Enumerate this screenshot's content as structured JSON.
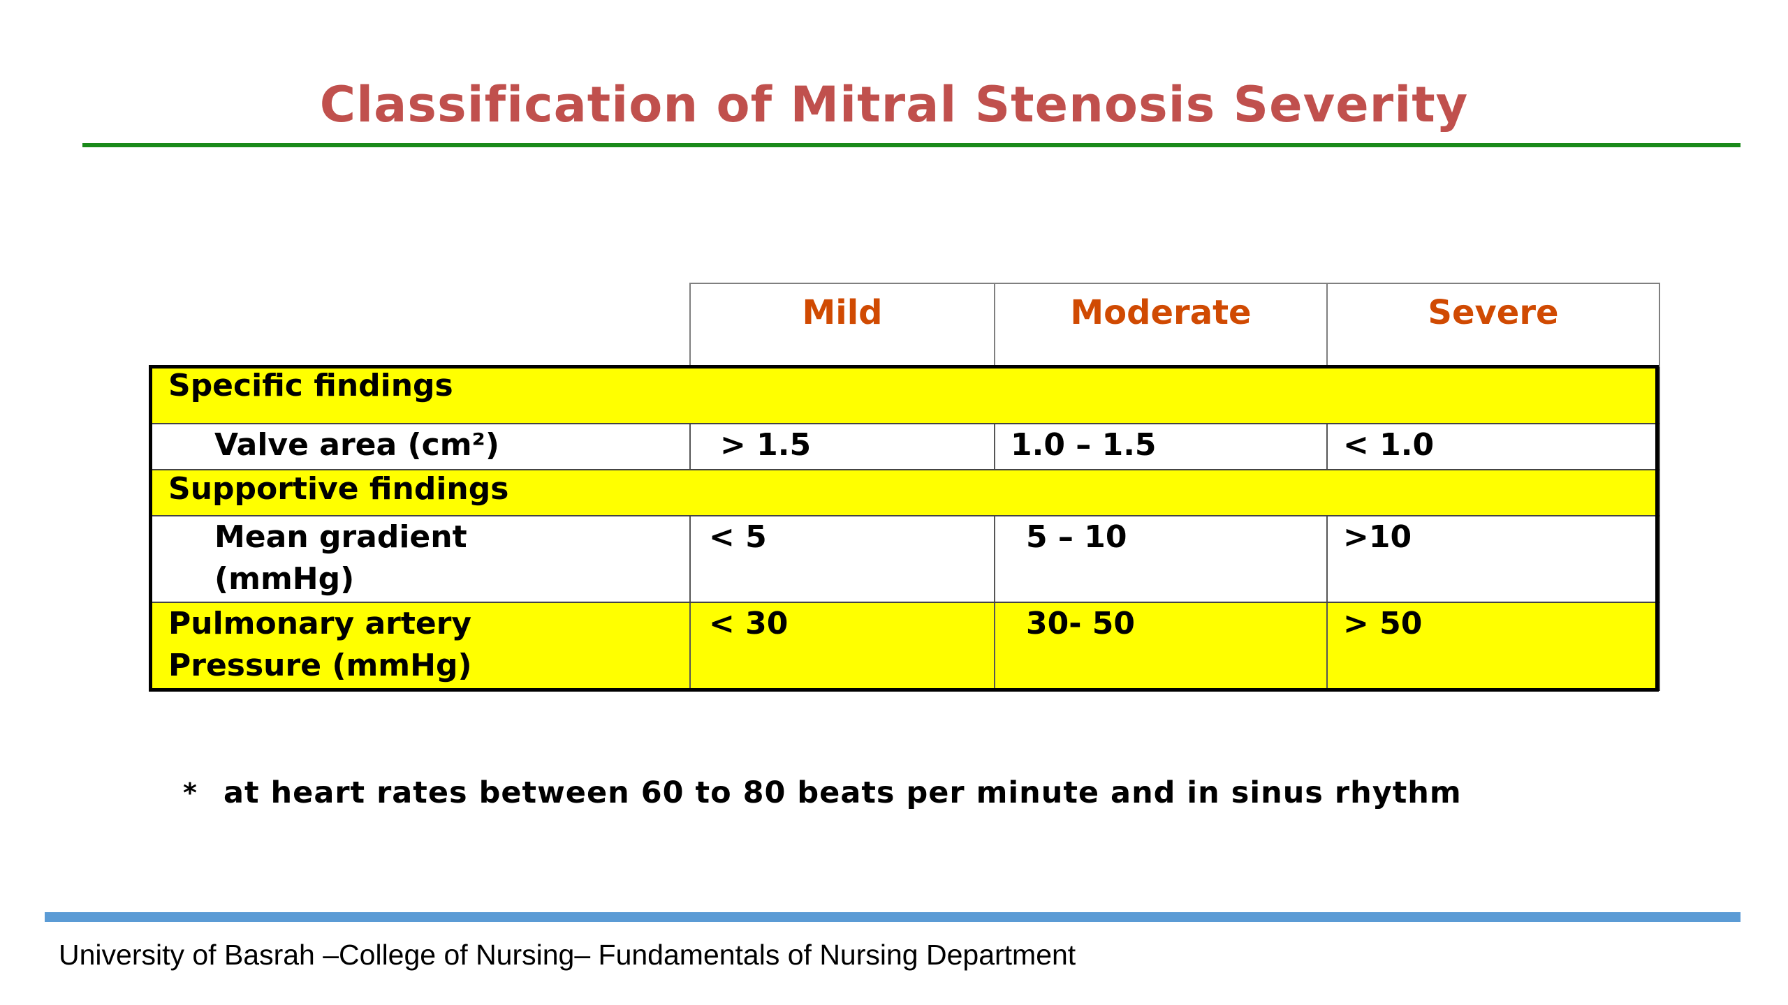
{
  "slide": {
    "title": "Classification of Mitral Stenosis Severity",
    "footnote_marker": "*",
    "footnote": "at heart rates between 60 to 80 beats per minute and in sinus rhythm",
    "footer": "University of Basrah –College of Nursing– Fundamentals of Nursing Department"
  },
  "table": {
    "columns": [
      "Mild",
      "Moderate",
      "Severe"
    ],
    "sections": {
      "specific": "Specific findings",
      "supportive": "Supportive findings"
    },
    "rows": {
      "valve_area": {
        "label": "Valve area (cm²)",
        "mild": "> 1.5",
        "moderate": "1.0 – 1.5",
        "severe": "< 1.0"
      },
      "mean_gradient": {
        "label_line1": "Mean gradient",
        "label_line2": "(mmHg)",
        "mild": "< 5",
        "moderate": "5 – 10",
        "severe": ">10"
      },
      "pulmonary_pressure": {
        "label_line1": "Pulmonary artery",
        "label_line2": "Pressure (mmHg)",
        "mild": "< 30",
        "moderate": "30- 50",
        "severe": "> 50"
      }
    }
  },
  "colors": {
    "title": "#c0504d",
    "title_rule": "#1a8a1a",
    "column_header": "#d04a02",
    "highlight": "#ffff00",
    "footer_rule": "#5b9bd5"
  }
}
